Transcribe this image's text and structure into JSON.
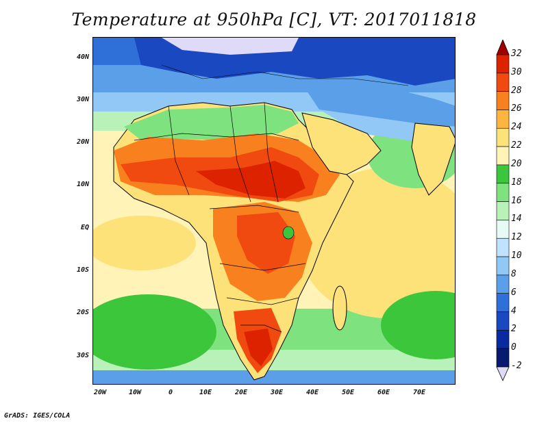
{
  "title": "Temperature at 950hPa [C], VT: 2017011818",
  "credit": "GrADS: IGES/COLA",
  "y_axis_labels": [
    "40N",
    "30N",
    "20N",
    "10N",
    "EQ",
    "10S",
    "20S",
    "30S"
  ],
  "x_axis_labels": [
    "20W",
    "10W",
    "0",
    "10E",
    "20E",
    "30E",
    "40E",
    "50E",
    "60E",
    "70E"
  ],
  "colorbar": {
    "labels": [
      "32",
      "30",
      "28",
      "26",
      "24",
      "22",
      "20",
      "18",
      "16",
      "14",
      "12",
      "10",
      "8",
      "6",
      "4",
      "2",
      "0",
      "-2"
    ],
    "colors": [
      "#a10000",
      "#dd2200",
      "#f04a10",
      "#f8801e",
      "#fdb440",
      "#fde27a",
      "#fff3b8",
      "#3cc63c",
      "#7ee27e",
      "#b8f2b8",
      "#e6fbf6",
      "#bfe3ff",
      "#92c8f6",
      "#5b9fe8",
      "#2e6fd8",
      "#1a48c0",
      "#0a2aa0",
      "#061a70",
      "#dedaf8"
    ]
  }
}
